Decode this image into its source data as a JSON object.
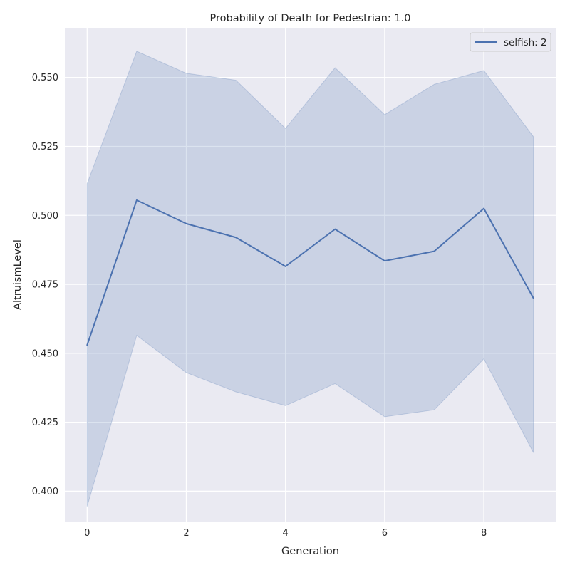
{
  "chart_data": {
    "type": "line",
    "title": "Probability of Death for Pedestrian: 1.0",
    "xlabel": "Generation",
    "ylabel": "AltruismLevel",
    "xlim": [
      -0.45,
      9.45
    ],
    "ylim": [
      0.389,
      0.568
    ],
    "xticks": [
      0,
      2,
      4,
      6,
      8
    ],
    "xtick_labels": [
      "0",
      "2",
      "4",
      "6",
      "8"
    ],
    "yticks": [
      0.4,
      0.425,
      0.45,
      0.475,
      0.5,
      0.525,
      0.55
    ],
    "ytick_labels": [
      "0.400",
      "0.425",
      "0.450",
      "0.475",
      "0.500",
      "0.525",
      "0.550"
    ],
    "grid": true,
    "legend_position": "top-right",
    "x": [
      0,
      1,
      2,
      3,
      4,
      5,
      6,
      7,
      8,
      9
    ],
    "series": [
      {
        "name": "selfish: 2",
        "color": "#4c72b0",
        "values": [
          0.453,
          0.5055,
          0.497,
          0.492,
          0.4815,
          0.495,
          0.4835,
          0.487,
          0.5025,
          0.47
        ],
        "ci_lower": [
          0.3945,
          0.4565,
          0.443,
          0.436,
          0.431,
          0.439,
          0.427,
          0.4295,
          0.448,
          0.414
        ],
        "ci_upper": [
          0.5115,
          0.5595,
          0.5515,
          0.549,
          0.5315,
          0.5535,
          0.5365,
          0.5475,
          0.5525,
          0.5285
        ]
      }
    ]
  }
}
